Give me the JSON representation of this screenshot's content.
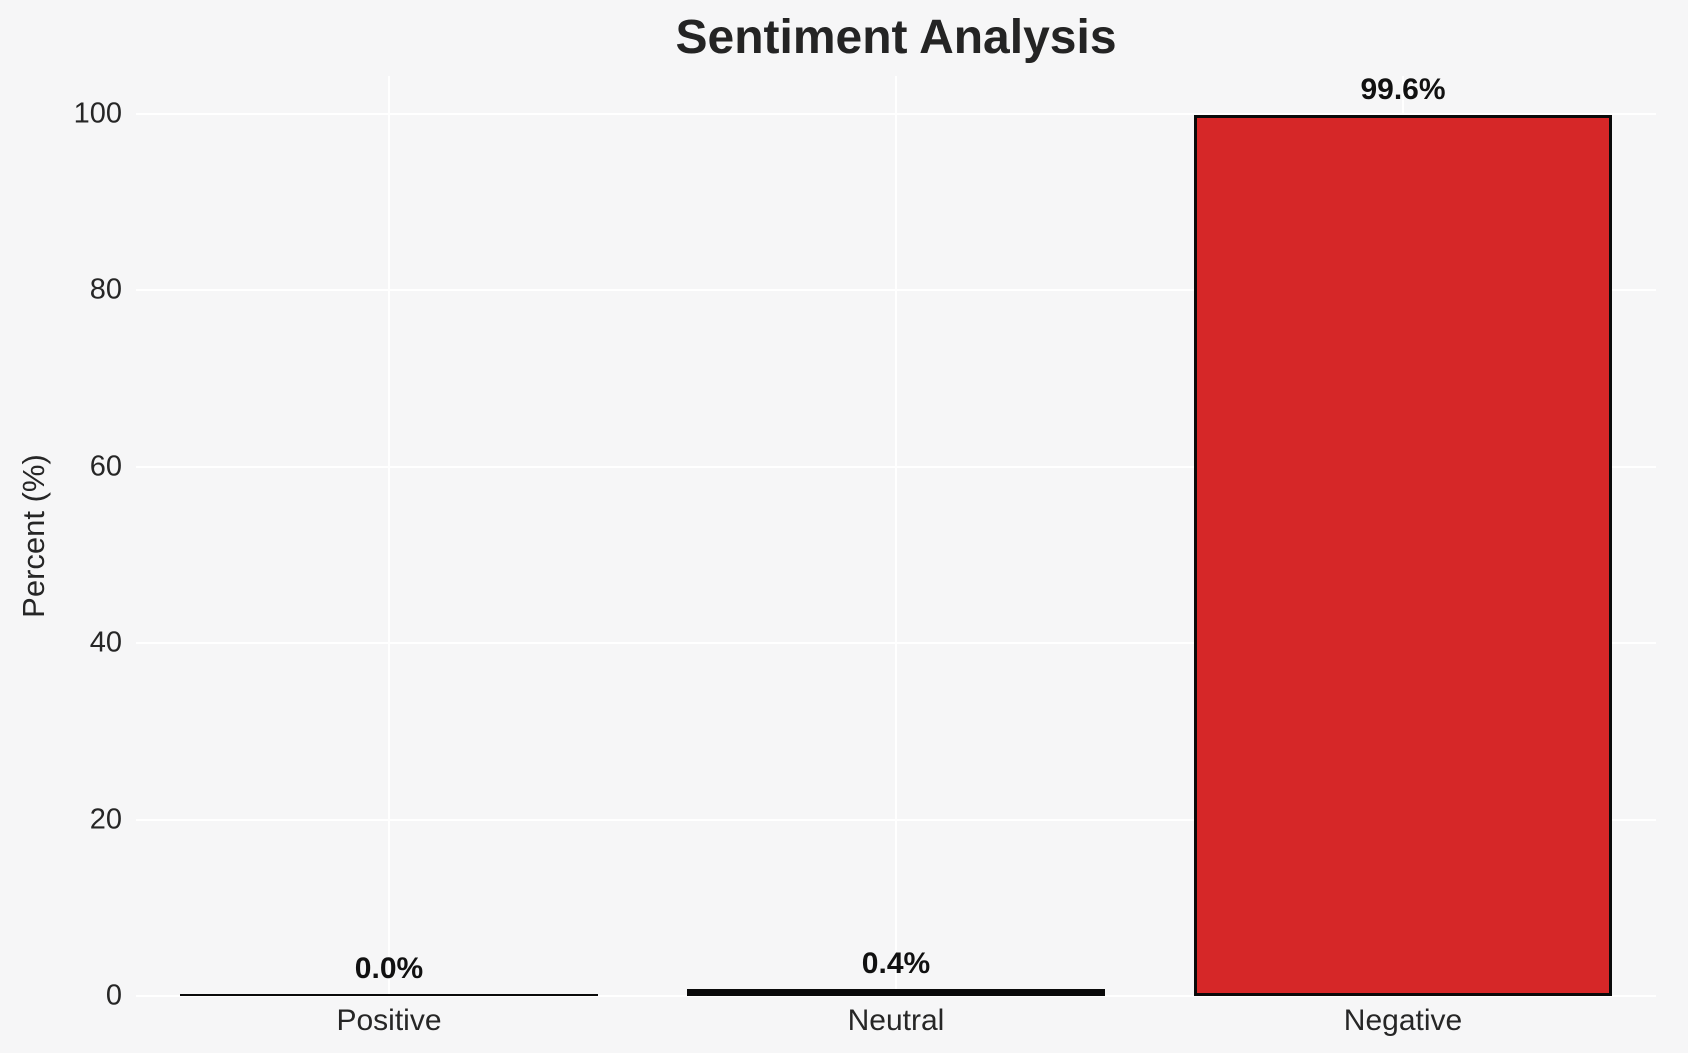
{
  "chart_data": {
    "type": "bar",
    "title": "Sentiment Analysis",
    "xlabel": "",
    "ylabel": "Percent (%)",
    "categories": [
      "Positive",
      "Neutral",
      "Negative"
    ],
    "values": [
      0.0,
      0.4,
      99.6
    ],
    "value_labels": [
      "0.0%",
      "0.4%",
      "99.6%"
    ],
    "yticks": [
      0,
      20,
      40,
      60,
      80,
      100
    ],
    "ylim": [
      0,
      104
    ],
    "grid": true,
    "grid_axes": "both",
    "legend": null,
    "bar_fill_colors": [
      null,
      null,
      "#d62728"
    ],
    "colors": {
      "background": "#f6f6f7",
      "gridline": "#ffffff",
      "bar_negative_fill": "#d62728",
      "bar_edge": "#0a0a0a",
      "title_text": "#242424",
      "tick_text": "#262626",
      "value_label_text": "#111111"
    }
  }
}
